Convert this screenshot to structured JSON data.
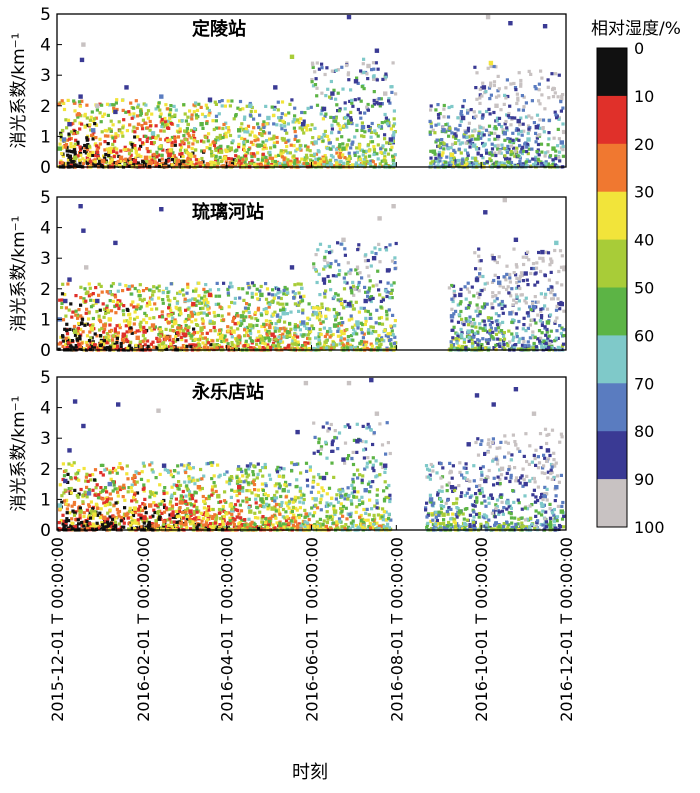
{
  "chart_data": {
    "type": "scatter",
    "xlabel": "时刻",
    "ylabel": "消光系数/km⁻¹",
    "ylim": [
      0,
      5
    ],
    "yticks": [
      "0",
      "1",
      "2",
      "3",
      "4",
      "5"
    ],
    "xrange": [
      "2015-12-01",
      "2016-12-01"
    ],
    "xticks": [
      "2015-12-01 T 00:00:00",
      "2016-02-01 T 00:00:00",
      "2016-04-01 T 00:00:00",
      "2016-06-01 T 00:00:00",
      "2016-08-01 T 00:00:00",
      "2016-10-01 T 00:00:00",
      "2016-12-01 T 00:00:00"
    ],
    "grid": false,
    "colorbar": {
      "title": "相对湿度/%",
      "ticks": [
        "0",
        "10",
        "20",
        "30",
        "40",
        "50",
        "60",
        "70",
        "80",
        "90",
        "100"
      ],
      "colors": [
        "#111111",
        "#e0302a",
        "#f07830",
        "#f2e43a",
        "#a8cc38",
        "#5cb445",
        "#7fc9c9",
        "#5a7cc0",
        "#3a3a94",
        "#c8c2c2"
      ]
    },
    "panels": [
      {
        "station": "定陵站",
        "data_gaps": [
          [
            "2016-08-01",
            "2016-08-25"
          ]
        ],
        "points": [
          [
            "2015-12-03",
            0.6,
            55
          ],
          [
            "2015-12-06",
            0.9,
            75
          ],
          [
            "2015-12-10",
            1.4,
            80
          ],
          [
            "2015-12-14",
            0.3,
            45
          ],
          [
            "2015-12-18",
            2.3,
            85
          ],
          [
            "2015-12-19",
            3.5,
            88
          ],
          [
            "2015-12-20",
            4.0,
            92
          ],
          [
            "2015-12-24",
            0.4,
            35
          ],
          [
            "2015-12-27",
            1.2,
            70
          ],
          [
            "2015-12-30",
            2.0,
            90
          ],
          [
            "2016-01-03",
            0.2,
            20
          ],
          [
            "2016-01-08",
            0.5,
            38
          ],
          [
            "2016-01-12",
            1.8,
            85
          ],
          [
            "2016-01-16",
            0.3,
            25
          ],
          [
            "2016-01-20",
            2.6,
            82
          ],
          [
            "2016-01-26",
            0.2,
            15
          ],
          [
            "2016-02-03",
            0.3,
            22
          ],
          [
            "2016-02-08",
            1.1,
            60
          ],
          [
            "2016-02-14",
            2.3,
            78
          ],
          [
            "2016-02-20",
            0.4,
            18
          ],
          [
            "2016-02-26",
            0.2,
            28
          ],
          [
            "2016-03-06",
            0.4,
            35
          ],
          [
            "2016-03-14",
            1.4,
            58
          ],
          [
            "2016-03-20",
            2.2,
            80
          ],
          [
            "2016-03-28",
            0.5,
            45
          ],
          [
            "2016-04-04",
            0.6,
            40
          ],
          [
            "2016-04-10",
            1.2,
            55
          ],
          [
            "2016-04-18",
            2.0,
            65
          ],
          [
            "2016-04-24",
            0.7,
            50
          ],
          [
            "2016-05-01",
            1.6,
            62
          ],
          [
            "2016-05-06",
            2.6,
            85
          ],
          [
            "2016-05-12",
            0.9,
            45
          ],
          [
            "2016-05-18",
            3.6,
            45
          ],
          [
            "2016-05-26",
            1.4,
            88
          ],
          [
            "2016-06-04",
            0.8,
            60
          ],
          [
            "2016-06-10",
            1.9,
            84
          ],
          [
            "2016-06-16",
            2.4,
            82
          ],
          [
            "2016-06-24",
            0.6,
            55
          ],
          [
            "2016-06-28",
            4.9,
            86
          ],
          [
            "2016-07-03",
            2.8,
            82
          ],
          [
            "2016-07-08",
            1.3,
            70
          ],
          [
            "2016-07-12",
            3.3,
            90
          ],
          [
            "2016-07-18",
            3.8,
            88
          ],
          [
            "2016-07-24",
            2.4,
            95
          ],
          [
            "2016-07-28",
            0.9,
            80
          ],
          [
            "2016-08-28",
            0.5,
            55
          ],
          [
            "2016-09-04",
            1.2,
            70
          ],
          [
            "2016-09-10",
            0.4,
            35
          ],
          [
            "2016-09-18",
            1.6,
            82
          ],
          [
            "2016-09-26",
            0.7,
            60
          ],
          [
            "2016-10-03",
            2.6,
            88
          ],
          [
            "2016-10-06",
            4.9,
            95
          ],
          [
            "2016-10-08",
            3.4,
            38
          ],
          [
            "2016-10-12",
            2.0,
            90
          ],
          [
            "2016-10-18",
            1.1,
            75
          ],
          [
            "2016-10-22",
            4.7,
            88
          ],
          [
            "2016-10-28",
            1.5,
            82
          ],
          [
            "2016-11-04",
            0.9,
            66
          ],
          [
            "2016-11-10",
            1.3,
            82
          ],
          [
            "2016-11-16",
            4.6,
            86
          ],
          [
            "2016-11-22",
            0.6,
            50
          ],
          [
            "2016-11-28",
            0.8,
            72
          ]
        ]
      },
      {
        "station": "琉璃河站",
        "data_gaps": [
          [
            "2016-08-01",
            "2016-09-08"
          ]
        ],
        "points": [
          [
            "2015-12-03",
            1.0,
            75
          ],
          [
            "2015-12-07",
            1.6,
            85
          ],
          [
            "2015-12-10",
            2.3,
            88
          ],
          [
            "2015-12-14",
            0.6,
            40
          ],
          [
            "2015-12-18",
            4.7,
            86
          ],
          [
            "2015-12-20",
            3.9,
            82
          ],
          [
            "2015-12-22",
            2.7,
            90
          ],
          [
            "2015-12-26",
            0.7,
            30
          ],
          [
            "2015-12-30",
            1.6,
            80
          ],
          [
            "2016-01-04",
            0.8,
            28
          ],
          [
            "2016-01-08",
            1.0,
            35
          ],
          [
            "2016-01-12",
            3.5,
            88
          ],
          [
            "2016-01-18",
            0.5,
            18
          ],
          [
            "2016-01-22",
            0.9,
            30
          ],
          [
            "2016-01-28",
            0.4,
            22
          ],
          [
            "2016-02-02",
            0.6,
            15
          ],
          [
            "2016-02-08",
            0.8,
            25
          ],
          [
            "2016-02-14",
            4.6,
            82
          ],
          [
            "2016-02-18",
            0.4,
            20
          ],
          [
            "2016-02-24",
            0.9,
            35
          ],
          [
            "2016-03-02",
            0.5,
            12
          ],
          [
            "2016-03-08",
            1.5,
            15
          ],
          [
            "2016-03-14",
            0.7,
            45
          ],
          [
            "2016-03-20",
            1.8,
            15
          ],
          [
            "2016-03-28",
            0.4,
            30
          ],
          [
            "2016-04-06",
            0.6,
            38
          ],
          [
            "2016-04-12",
            1.1,
            55
          ],
          [
            "2016-04-18",
            0.8,
            48
          ],
          [
            "2016-04-26",
            1.8,
            52
          ],
          [
            "2016-05-04",
            0.5,
            10
          ],
          [
            "2016-05-12",
            1.2,
            60
          ],
          [
            "2016-05-18",
            2.7,
            85
          ],
          [
            "2016-05-26",
            0.9,
            70
          ],
          [
            "2016-06-04",
            1.2,
            65
          ],
          [
            "2016-06-10",
            2.3,
            82
          ],
          [
            "2016-06-18",
            0.8,
            58
          ],
          [
            "2016-06-24",
            3.6,
            92
          ],
          [
            "2016-06-28",
            1.5,
            84
          ],
          [
            "2016-07-04",
            0.9,
            60
          ],
          [
            "2016-07-10",
            1.6,
            80
          ],
          [
            "2016-07-16",
            3.0,
            86
          ],
          [
            "2016-07-20",
            4.3,
            93
          ],
          [
            "2016-07-26",
            2.6,
            88
          ],
          [
            "2016-07-30",
            4.7,
            90
          ],
          [
            "2016-09-10",
            1.1,
            70
          ],
          [
            "2016-09-16",
            1.8,
            82
          ],
          [
            "2016-09-22",
            0.6,
            60
          ],
          [
            "2016-09-28",
            2.3,
            86
          ],
          [
            "2016-10-04",
            4.5,
            88
          ],
          [
            "2016-10-10",
            3.0,
            82
          ],
          [
            "2016-10-14",
            2.2,
            78
          ],
          [
            "2016-10-18",
            4.9,
            90
          ],
          [
            "2016-10-22",
            1.2,
            76
          ],
          [
            "2016-10-26",
            3.6,
            85
          ],
          [
            "2016-11-02",
            2.5,
            88
          ],
          [
            "2016-11-08",
            1.4,
            72
          ],
          [
            "2016-11-14",
            3.2,
            86
          ],
          [
            "2016-11-18",
            0.9,
            58
          ],
          [
            "2016-11-24",
            3.5,
            60
          ],
          [
            "2016-11-28",
            1.5,
            80
          ]
        ]
      },
      {
        "station": "永乐店站",
        "data_gaps": [
          [
            "2016-07-28",
            "2016-08-22"
          ]
        ],
        "points": [
          [
            "2015-12-03",
            0.8,
            60
          ],
          [
            "2015-12-07",
            1.6,
            80
          ],
          [
            "2015-12-10",
            2.6,
            86
          ],
          [
            "2015-12-14",
            4.2,
            88
          ],
          [
            "2015-12-18",
            0.6,
            45
          ],
          [
            "2015-12-20",
            3.4,
            82
          ],
          [
            "2015-12-24",
            1.2,
            70
          ],
          [
            "2015-12-28",
            0.5,
            30
          ],
          [
            "2016-01-04",
            0.4,
            20
          ],
          [
            "2016-01-08",
            1.5,
            75
          ],
          [
            "2016-01-14",
            4.1,
            88
          ],
          [
            "2016-01-20",
            0.5,
            25
          ],
          [
            "2016-01-26",
            0.7,
            35
          ],
          [
            "2016-02-02",
            0.4,
            18
          ],
          [
            "2016-02-06",
            0.8,
            28
          ],
          [
            "2016-02-12",
            3.9,
            92
          ],
          [
            "2016-02-16",
            2.1,
            80
          ],
          [
            "2016-02-22",
            0.5,
            15
          ],
          [
            "2016-02-28",
            0.9,
            22
          ],
          [
            "2016-03-06",
            0.6,
            12
          ],
          [
            "2016-03-12",
            1.4,
            25
          ],
          [
            "2016-03-18",
            0.5,
            35
          ],
          [
            "2016-03-26",
            1.1,
            40
          ],
          [
            "2016-04-04",
            0.8,
            30
          ],
          [
            "2016-04-10",
            1.4,
            18
          ],
          [
            "2016-04-18",
            0.6,
            42
          ],
          [
            "2016-04-26",
            1.0,
            50
          ],
          [
            "2016-05-04",
            0.7,
            40
          ],
          [
            "2016-05-12",
            1.3,
            58
          ],
          [
            "2016-05-22",
            3.2,
            82
          ],
          [
            "2016-05-28",
            4.8,
            95
          ],
          [
            "2016-06-04",
            1.0,
            62
          ],
          [
            "2016-06-10",
            1.7,
            80
          ],
          [
            "2016-06-18",
            0.6,
            48
          ],
          [
            "2016-06-24",
            2.3,
            86
          ],
          [
            "2016-06-28",
            4.8,
            92
          ],
          [
            "2016-07-04",
            2.9,
            85
          ],
          [
            "2016-07-10",
            1.3,
            78
          ],
          [
            "2016-07-14",
            4.9,
            88
          ],
          [
            "2016-07-18",
            3.8,
            90
          ],
          [
            "2016-07-24",
            2.1,
            84
          ],
          [
            "2016-08-26",
            1.0,
            75
          ],
          [
            "2016-09-04",
            0.5,
            45
          ],
          [
            "2016-09-10",
            1.4,
            82
          ],
          [
            "2016-09-16",
            0.6,
            55
          ],
          [
            "2016-09-22",
            2.8,
            88
          ],
          [
            "2016-09-28",
            4.4,
            86
          ],
          [
            "2016-10-04",
            1.6,
            82
          ],
          [
            "2016-10-10",
            4.1,
            88
          ],
          [
            "2016-10-16",
            2.0,
            95
          ],
          [
            "2016-10-20",
            0.9,
            68
          ],
          [
            "2016-10-26",
            4.6,
            86
          ],
          [
            "2016-11-02",
            1.5,
            80
          ],
          [
            "2016-11-08",
            3.8,
            92
          ],
          [
            "2016-11-14",
            0.8,
            62
          ],
          [
            "2016-11-18",
            2.6,
            85
          ],
          [
            "2016-11-24",
            1.4,
            78
          ],
          [
            "2016-11-28",
            0.6,
            52
          ]
        ]
      }
    ]
  }
}
